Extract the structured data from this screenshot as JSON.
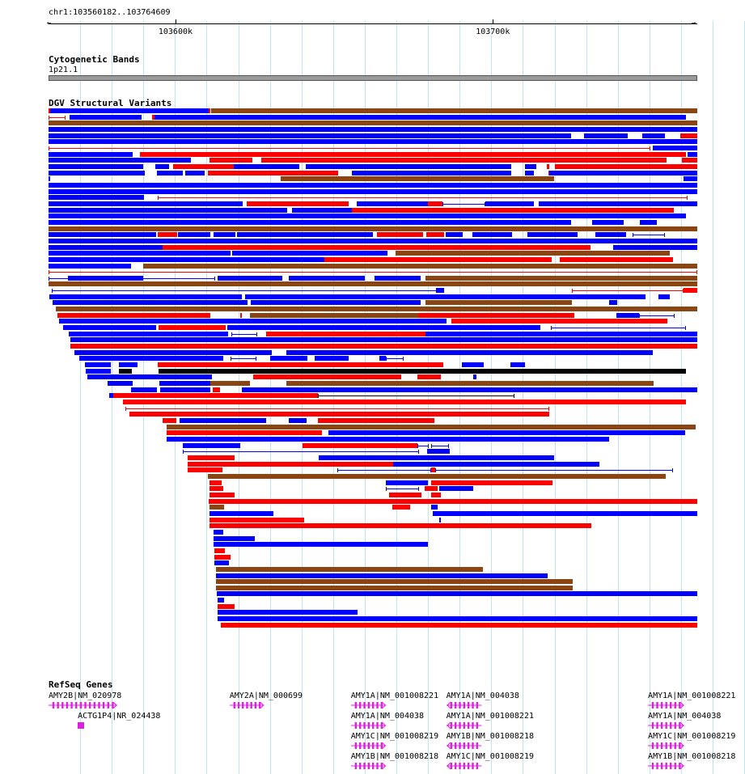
{
  "location": "chr1:103560182..103764609",
  "ruler": {
    "ticks": [
      {
        "label": "103600k",
        "frac": 0.1957
      },
      {
        "label": "103700k",
        "frac": 0.6849
      }
    ]
  },
  "tracks": {
    "cytoband": {
      "title": "Cytogenetic Bands",
      "band": "1p21.1"
    },
    "dgv": {
      "title": "DGV Structural Variants"
    },
    "refseq": {
      "title": "RefSeq Genes"
    }
  },
  "colors": {
    "loss": "#ff0000",
    "gain": "#0000ff",
    "both": "#8b4513",
    "inversion": "#000000",
    "gene": "#e020e0",
    "grid": "#bfe3f0"
  },
  "genes": [
    {
      "label": "AMY2B|NM_020978",
      "frac_start": 0.0,
      "frac_end": 0.106,
      "row": 0,
      "strand": "+"
    },
    {
      "label": "ACTG1P4|NR_024438",
      "frac_start": 0.045,
      "frac_end": 0.055,
      "row": 1,
      "strand": "+"
    },
    {
      "label": "AMY2A|NM_000699",
      "frac_start": 0.279,
      "frac_end": 0.332,
      "row": 0,
      "strand": "+"
    },
    {
      "label": "AMY1A|NM_001008221",
      "frac_start": 0.466,
      "frac_end": 0.52,
      "row": 0,
      "strand": "+"
    },
    {
      "label": "AMY1A|NM_004038",
      "frac_start": 0.466,
      "frac_end": 0.52,
      "row": 1,
      "strand": "+"
    },
    {
      "label": "AMY1C|NM_001008219",
      "frac_start": 0.466,
      "frac_end": 0.52,
      "row": 2,
      "strand": "+"
    },
    {
      "label": "AMY1B|NM_001008218",
      "frac_start": 0.466,
      "frac_end": 0.52,
      "row": 3,
      "strand": "+"
    },
    {
      "label": "AMY1A|NM_004038",
      "frac_start": 0.613,
      "frac_end": 0.667,
      "row": 0,
      "strand": "-"
    },
    {
      "label": "AMY1A|NM_001008221",
      "frac_start": 0.613,
      "frac_end": 0.667,
      "row": 1,
      "strand": "-"
    },
    {
      "label": "AMY1B|NM_001008218",
      "frac_start": 0.613,
      "frac_end": 0.667,
      "row": 2,
      "strand": "-"
    },
    {
      "label": "AMY1C|NM_001008219",
      "frac_start": 0.613,
      "frac_end": 0.667,
      "row": 3,
      "strand": "-"
    },
    {
      "label": "AMY1A|NM_001008221",
      "frac_start": 0.924,
      "frac_end": 0.98,
      "row": 0,
      "strand": "+"
    },
    {
      "label": "AMY1A|NM_004038",
      "frac_start": 0.924,
      "frac_end": 0.98,
      "row": 1,
      "strand": "+"
    },
    {
      "label": "AMY1C|NM_001008219",
      "frac_start": 0.924,
      "frac_end": 0.98,
      "row": 2,
      "strand": "+"
    },
    {
      "label": "AMY1B|NM_001008218",
      "frac_start": 0.924,
      "frac_end": 0.98,
      "row": 3,
      "strand": "+"
    }
  ],
  "variants": [
    [
      [
        "r",
        0,
        0.002
      ],
      [
        "b",
        0.002,
        0.247
      ],
      [
        "r",
        0.247,
        0.25
      ],
      [
        "n",
        0.25,
        1
      ]
    ],
    [
      [
        "rl",
        0,
        0.026
      ],
      [
        "b",
        0.032,
        0.143
      ],
      [
        "r",
        0.16,
        0.163
      ],
      [
        "b",
        0.163,
        0.983
      ]
    ],
    [
      [
        "n",
        0,
        1
      ]
    ],
    [
      [
        "b",
        0,
        1
      ]
    ],
    [
      [
        "b",
        0,
        0.806
      ],
      [
        "b",
        0.825,
        0.893
      ],
      [
        "b",
        0.915,
        0.95
      ],
      [
        "r",
        0.974,
        1
      ]
    ],
    [
      [
        "b",
        0,
        1
      ]
    ],
    [
      [
        "rl",
        0,
        0.928
      ],
      [
        "b",
        0.931,
        1
      ]
    ],
    [
      [
        "b",
        0,
        0.13
      ],
      [
        "r",
        0.141,
        0.982
      ],
      [
        "b",
        0.985,
        1
      ]
    ],
    [
      [
        "b",
        0,
        0.219
      ],
      [
        "r",
        0.248,
        0.314
      ],
      [
        "r",
        0.328,
        0.953
      ],
      [
        "r",
        0.976,
        1
      ]
    ],
    [
      [
        "b",
        0,
        0.146
      ],
      [
        "b",
        0.164,
        0.186
      ],
      [
        "r",
        0.192,
        0.285
      ],
      [
        "b",
        0.285,
        0.387
      ],
      [
        "b",
        0.396,
        0.713
      ],
      [
        "b",
        0.735,
        0.752
      ],
      [
        "r",
        0.768,
        0.772
      ],
      [
        "r",
        0.78,
        1
      ]
    ],
    [
      [
        "b",
        0,
        0.148
      ],
      [
        "b",
        0.167,
        0.207
      ],
      [
        "b",
        0.211,
        0.241
      ],
      [
        "r",
        0.246,
        0.447
      ],
      [
        "b",
        0.467,
        0.713
      ],
      [
        "b",
        0.735,
        0.748
      ],
      [
        "r",
        0.77,
        0.771
      ],
      [
        "b",
        0.772,
        1
      ]
    ],
    [
      [
        "b",
        0,
        0.001
      ],
      [
        "n",
        0.358,
        0.779
      ],
      [
        "b",
        0.979,
        1
      ]
    ],
    [
      [
        "b",
        0,
        1
      ]
    ],
    [
      [
        "b",
        0,
        1
      ]
    ],
    [
      [
        "b",
        0,
        0.147
      ],
      [
        "rl",
        0.168,
        0.985
      ]
    ],
    [
      [
        "b",
        0,
        0.299
      ],
      [
        "r",
        0.305,
        0.462
      ],
      [
        "b",
        0.475,
        0.585
      ],
      [
        "r",
        0.585,
        0.607
      ],
      [
        "bl",
        0.607,
        0.673
      ],
      [
        "b",
        0.673,
        0.748
      ],
      [
        "b",
        0.755,
        1
      ]
    ],
    [
      [
        "b",
        0,
        0.368
      ],
      [
        "b",
        0.375,
        0.468
      ],
      [
        "r",
        0.468,
        0.964
      ]
    ],
    [
      [
        "b",
        0,
        0.671
      ],
      [
        "b",
        0.671,
        0.983
      ]
    ],
    [
      [
        "b",
        0,
        0.806
      ],
      [
        "b",
        0.838,
        0.886
      ],
      [
        "b",
        0.911,
        0.938
      ]
    ],
    [
      [
        "n",
        0,
        1
      ]
    ],
    [
      [
        "b",
        0,
        0.166
      ],
      [
        "r",
        0.168,
        0.198
      ],
      [
        "b",
        0.2,
        0.25
      ],
      [
        "b",
        0.254,
        0.288
      ],
      [
        "b",
        0.29,
        0.5
      ],
      [
        "r",
        0.506,
        0.577
      ],
      [
        "r",
        0.582,
        0.61
      ],
      [
        "b",
        0.612,
        0.639
      ],
      [
        "b",
        0.653,
        0.715
      ],
      [
        "b",
        0.738,
        0.815
      ],
      [
        "b",
        0.843,
        0.89
      ],
      [
        "bl",
        0.9,
        0.95
      ]
    ],
    [
      [
        "b",
        0,
        1
      ]
    ],
    [
      [
        "b",
        0,
        0.176
      ],
      [
        "r",
        0.176,
        0.836
      ],
      [
        "b",
        0.87,
        1
      ]
    ],
    [
      [
        "b",
        0,
        0.28
      ],
      [
        "b",
        0.283,
        0.522
      ],
      [
        "n",
        0.535,
        0.957
      ]
    ],
    [
      [
        "b",
        0,
        0.397
      ],
      [
        "b",
        0.397,
        0.425
      ],
      [
        "r",
        0.425,
        0.776
      ],
      [
        "r",
        0.788,
        0.963
      ]
    ],
    [
      [
        "b",
        0,
        0.127
      ],
      [
        "n",
        0.146,
        1
      ]
    ],
    [
      [
        "rl",
        0,
        1
      ]
    ],
    [
      [
        "bl",
        0,
        0.257
      ],
      [
        "b",
        0.03,
        0.146
      ],
      [
        "b",
        0.26,
        0.36
      ],
      [
        "b",
        0.37,
        0.487
      ],
      [
        "b",
        0.502,
        0.574
      ],
      [
        "n",
        0.581,
        1
      ]
    ],
    [
      [
        "n",
        0,
        1
      ]
    ],
    [
      [
        "bl",
        0.005,
        0.605
      ],
      [
        "b",
        0.597,
        0.61
      ],
      [
        "rl",
        0.807,
        0.979
      ],
      [
        "r",
        0.979,
        1
      ]
    ],
    [
      [
        "b",
        0.001,
        0.298
      ],
      [
        "b",
        0.303,
        0.92
      ],
      [
        "b",
        0.94,
        0.957
      ]
    ],
    [
      [
        "b",
        0.006,
        0.307
      ],
      [
        "b",
        0.312,
        0.574
      ],
      [
        "n",
        0.581,
        0.807
      ],
      [
        "b",
        0.864,
        0.877
      ]
    ],
    [
      [
        "n",
        0.011,
        1
      ]
    ],
    [
      [
        "r",
        0.014,
        0.25
      ],
      [
        "r",
        0.295,
        0.297
      ],
      [
        "n",
        0.311,
        0.576
      ],
      [
        "r",
        0.57,
        0.81
      ],
      [
        "b",
        0.875,
        0.91
      ],
      [
        "bl",
        0.91,
        0.965
      ]
    ],
    [
      [
        "b",
        0.016,
        0.614
      ],
      [
        "r",
        0.621,
        0.954
      ]
    ],
    [
      [
        "b",
        0.022,
        0.166
      ],
      [
        "r",
        0.169,
        0.273
      ],
      [
        "b",
        0.275,
        0.758
      ],
      [
        "bl",
        0.774,
        0.982
      ]
    ],
    [
      [
        "b",
        0.031,
        0.277
      ],
      [
        "bl",
        0.282,
        0.322
      ],
      [
        "r",
        0.336,
        0.581
      ],
      [
        "b",
        0.581,
        1
      ]
    ],
    [
      [
        "b",
        0.034,
        1
      ]
    ],
    [
      [
        "r",
        0.034,
        1
      ]
    ],
    [
      [
        "b",
        0.04,
        0.344
      ],
      [
        "b",
        0.366,
        0.931
      ]
    ],
    [
      [
        "b",
        0.048,
        0.269
      ],
      [
        "bl",
        0.28,
        0.32
      ],
      [
        "b",
        0.342,
        0.399
      ],
      [
        "b",
        0.41,
        0.462
      ],
      [
        "b",
        0.51,
        0.52
      ],
      [
        "bl",
        0.52,
        0.548
      ]
    ],
    [
      [
        "b",
        0.056,
        0.096
      ],
      [
        "b",
        0.108,
        0.137
      ],
      [
        "r",
        0.168,
        0.608
      ],
      [
        "b",
        0.637,
        0.671
      ],
      [
        "b",
        0.712,
        0.735
      ]
    ],
    [
      [
        "b",
        0.057,
        0.096
      ],
      [
        "k",
        0.109,
        0.128
      ],
      [
        "k",
        0.169,
        0.982
      ]
    ],
    [
      [
        "b",
        0.06,
        0.252
      ],
      [
        "r",
        0.315,
        0.544
      ],
      [
        "r",
        0.569,
        0.605
      ],
      [
        "b",
        0.654,
        0.66
      ]
    ],
    [
      [
        "b",
        0.091,
        0.13
      ],
      [
        "b",
        0.171,
        0.249
      ],
      [
        "n",
        0.249,
        0.311
      ],
      [
        "n",
        0.366,
        0.933
      ]
    ],
    [
      [
        "b",
        0.127,
        0.167
      ],
      [
        "b",
        0.172,
        0.249
      ],
      [
        "r",
        0.253,
        0.264
      ],
      [
        "b",
        0.298,
        1
      ]
    ],
    [
      [
        "b",
        0.094,
        0.101
      ],
      [
        "r",
        0.1,
        0.415
      ],
      [
        "kl",
        0.415,
        0.718
      ]
    ],
    [
      [
        "r",
        0.115,
        0.982
      ]
    ],
    [
      [
        "rl",
        0.119,
        0.772
      ]
    ],
    [
      [
        "r",
        0.125,
        0.772
      ]
    ],
    [
      [
        "r",
        0.176,
        0.197
      ],
      [
        "b",
        0.202,
        0.336
      ],
      [
        "b",
        0.37,
        0.398
      ],
      [
        "r",
        0.415,
        0.595
      ]
    ],
    [
      [
        "n",
        0.182,
        0.997
      ]
    ],
    [
      [
        "r",
        0.182,
        0.422
      ],
      [
        "b",
        0.431,
        0.981
      ]
    ],
    [
      [
        "b",
        0.182,
        0.864
      ]
    ],
    [
      [
        "b",
        0.207,
        0.296
      ],
      [
        "r",
        0.392,
        0.568
      ],
      [
        "bl",
        0.568,
        0.586
      ],
      [
        "bl",
        0.59,
        0.617
      ]
    ],
    [
      [
        "bl",
        0.207,
        0.571
      ],
      [
        "b",
        0.584,
        0.618
      ]
    ],
    [
      [
        "r",
        0.214,
        0.287
      ],
      [
        "b",
        0.417,
        0.779
      ]
    ],
    [
      [
        "r",
        0.214,
        0.531
      ],
      [
        "b",
        0.531,
        0.849
      ]
    ],
    [
      [
        "r",
        0.214,
        0.268
      ],
      [
        "bl",
        0.445,
        0.59
      ],
      [
        "r",
        0.59,
        0.596
      ],
      [
        "bl",
        0.596,
        0.963
      ]
    ],
    [
      [
        "n",
        0.246,
        0.951
      ]
    ],
    [
      [
        "r",
        0.248,
        0.267
      ],
      [
        "b",
        0.52,
        0.585
      ],
      [
        "r",
        0.59,
        0.777
      ]
    ],
    [
      [
        "r",
        0.248,
        0.269
      ],
      [
        "bl",
        0.52,
        0.571
      ],
      [
        "r",
        0.58,
        0.6
      ],
      [
        "b",
        0.602,
        0.655
      ]
    ],
    [
      [
        "r",
        0.248,
        0.287
      ],
      [
        "r",
        0.525,
        0.575
      ],
      [
        "r",
        0.59,
        0.605
      ]
    ],
    [
      [
        "r",
        0.247,
        1
      ]
    ],
    [
      [
        "n",
        0.248,
        0.27
      ],
      [
        "r",
        0.53,
        0.557
      ],
      [
        "b",
        0.59,
        0.6
      ]
    ],
    [
      [
        "b",
        0.248,
        0.347
      ],
      [
        "b",
        0.592,
        1
      ]
    ],
    [
      [
        "r",
        0.248,
        0.394
      ],
      [
        "b",
        0.602,
        0.605
      ]
    ],
    [
      [
        "r",
        0.248,
        0.837
      ]
    ],
    [
      [
        "b",
        0.254,
        0.269
      ]
    ],
    [
      [
        "b",
        0.254,
        0.318
      ]
    ],
    [
      [
        "b",
        0.254,
        0.585
      ]
    ],
    [
      [
        "r",
        0.256,
        0.272
      ]
    ],
    [
      [
        "r",
        0.256,
        0.28
      ]
    ],
    [
      [
        "b",
        0.256,
        0.278
      ]
    ],
    [
      [
        "n",
        0.258,
        0.669
      ]
    ],
    [
      [
        "b",
        0.258,
        0.769
      ]
    ],
    [
      [
        "n",
        0.258,
        0.808
      ]
    ],
    [
      [
        "n",
        0.258,
        0.808
      ]
    ],
    [
      [
        "b",
        0.259,
        1
      ]
    ],
    [
      [
        "b",
        0.26,
        0.271
      ]
    ],
    [
      [
        "r",
        0.26,
        0.287
      ]
    ],
    [
      [
        "b",
        0.261,
        0.476
      ]
    ],
    [
      [
        "b",
        0.261,
        1
      ]
    ],
    [
      [
        "r",
        0.266,
        1
      ]
    ]
  ]
}
